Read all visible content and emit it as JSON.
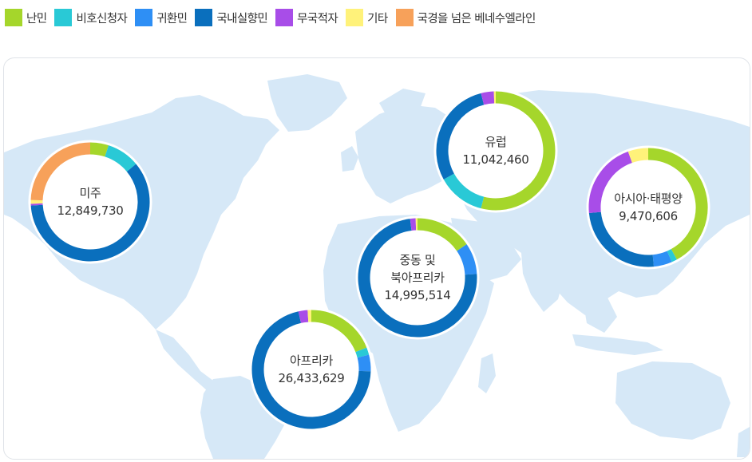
{
  "chart_data": {
    "type": "donut",
    "legend": [
      {
        "key": "refugee",
        "label": "난민",
        "color": "#a5d62b"
      },
      {
        "key": "asylum",
        "label": "비호신청자",
        "color": "#29c9d6"
      },
      {
        "key": "returnee",
        "label": "귀환민",
        "color": "#2e8ff5"
      },
      {
        "key": "idp",
        "label": "국내실향민",
        "color": "#0a6fbd"
      },
      {
        "key": "stateless",
        "label": "무국적자",
        "color": "#a84de8"
      },
      {
        "key": "other",
        "label": "기타",
        "color": "#fff27a"
      },
      {
        "key": "venezuelan",
        "label": "국경을 넘은 베네수엘라인",
        "color": "#f7a15a"
      }
    ],
    "regions": [
      {
        "id": "americas",
        "name": [
          "미주"
        ],
        "total": "12,849,730",
        "segments": {
          "refugee": 0.05,
          "asylum": 0.09,
          "returnee": 0.0,
          "idp": 0.6,
          "stateless": 0.005,
          "other": 0.01,
          "venezuelan": 0.245
        }
      },
      {
        "id": "europe",
        "name": [
          "유럽"
        ],
        "total": "11,042,460",
        "segments": {
          "refugee": 0.54,
          "asylum": 0.13,
          "returnee": 0.0,
          "idp": 0.29,
          "stateless": 0.035,
          "other": 0.005,
          "venezuelan": 0.0
        }
      },
      {
        "id": "asia-pacific",
        "name": [
          "아시아·태평양"
        ],
        "total": "9,470,606",
        "segments": {
          "refugee": 0.42,
          "asylum": 0.015,
          "returnee": 0.05,
          "idp": 0.25,
          "stateless": 0.21,
          "other": 0.055,
          "venezuelan": 0.0
        }
      },
      {
        "id": "mena",
        "name": [
          "중동 및",
          "북아프리카"
        ],
        "total": "14,995,514",
        "segments": {
          "refugee": 0.155,
          "asylum": 0.0,
          "returnee": 0.085,
          "idp": 0.74,
          "stateless": 0.015,
          "other": 0.005,
          "venezuelan": 0.0
        }
      },
      {
        "id": "africa",
        "name": [
          "아프리카"
        ],
        "total": "26,433,629",
        "segments": {
          "refugee": 0.19,
          "asylum": 0.02,
          "returnee": 0.045,
          "idp": 0.71,
          "stateless": 0.025,
          "other": 0.01,
          "venezuelan": 0.0
        }
      }
    ]
  }
}
